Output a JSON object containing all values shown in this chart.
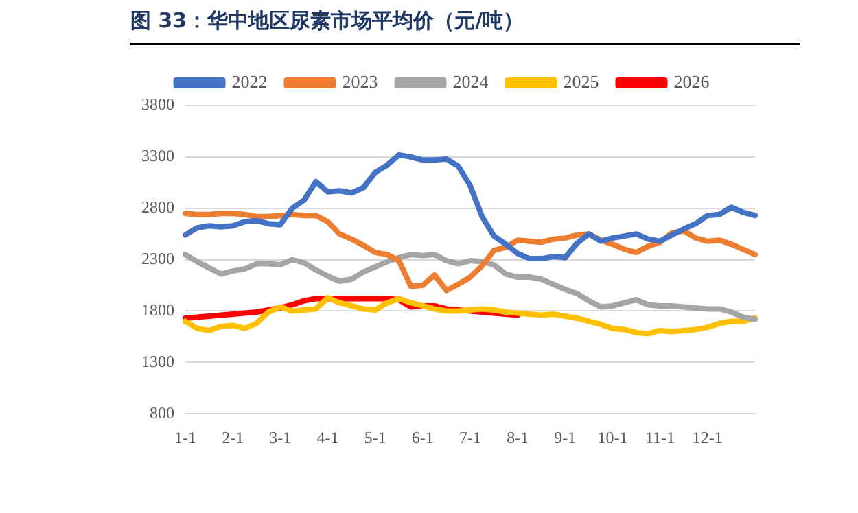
{
  "chart_data": {
    "type": "line",
    "title": "图 33：华中地区尿素市场平均价（元/吨）",
    "categories": [
      "1-1",
      null,
      null,
      null,
      "2-1",
      null,
      null,
      null,
      "3-1",
      null,
      null,
      null,
      "4-1",
      null,
      null,
      null,
      "5-1",
      null,
      null,
      null,
      "6-1",
      null,
      null,
      null,
      "7-1",
      null,
      null,
      null,
      "8-1",
      null,
      null,
      null,
      "9-1",
      null,
      null,
      null,
      "10-1",
      null,
      null,
      null,
      "11-1",
      null,
      null,
      null,
      "12-1",
      null,
      null,
      null,
      null
    ],
    "series": [
      {
        "name": "2022",
        "color": "#4472c4",
        "values": [
          2540,
          2610,
          2630,
          2620,
          2630,
          2670,
          2680,
          2650,
          2640,
          2800,
          2880,
          3060,
          2960,
          2970,
          2950,
          3000,
          3150,
          3220,
          3320,
          3300,
          3270,
          3270,
          3280,
          3210,
          3020,
          2720,
          2530,
          2450,
          2360,
          2310,
          2310,
          2330,
          2320,
          2460,
          2550,
          2480,
          2510,
          2530,
          2550,
          2500,
          2480,
          2540,
          2600,
          2650,
          2730,
          2740,
          2810,
          2760,
          2730
        ]
      },
      {
        "name": "2023",
        "color": "#ed7d31",
        "values": [
          2750,
          2740,
          2740,
          2750,
          2750,
          2740,
          2720,
          2720,
          2730,
          2740,
          2730,
          2730,
          2670,
          2550,
          2500,
          2440,
          2370,
          2350,
          2290,
          2040,
          2050,
          2150,
          2000,
          2060,
          2130,
          2240,
          2390,
          2420,
          2490,
          2480,
          2470,
          2500,
          2510,
          2540,
          2550,
          2490,
          2450,
          2400,
          2370,
          2430,
          2470,
          2560,
          2580,
          2510,
          2480,
          2490,
          2450,
          2400,
          2350
        ]
      },
      {
        "name": "2024",
        "color": "#a5a5a5",
        "values": [
          2350,
          2280,
          2220,
          2160,
          2190,
          2210,
          2260,
          2260,
          2250,
          2300,
          2270,
          2200,
          2140,
          2090,
          2110,
          2180,
          2230,
          2280,
          2320,
          2350,
          2340,
          2350,
          2290,
          2260,
          2290,
          2280,
          2250,
          2160,
          2130,
          2130,
          2110,
          2060,
          2010,
          1970,
          1900,
          1840,
          1850,
          1880,
          1910,
          1860,
          1850,
          1850,
          1840,
          1830,
          1820,
          1820,
          1790,
          1740,
          1720
        ]
      },
      {
        "name": "2025",
        "color": "#ffc000",
        "values": [
          1700,
          1630,
          1610,
          1650,
          1660,
          1630,
          1680,
          1790,
          1840,
          1800,
          1810,
          1820,
          1930,
          1880,
          1850,
          1820,
          1810,
          1880,
          1920,
          1880,
          1850,
          1820,
          1800,
          1800,
          1810,
          1820,
          1810,
          1790,
          1780,
          1770,
          1760,
          1770,
          1750,
          1730,
          1700,
          1670,
          1630,
          1620,
          1590,
          1580,
          1610,
          1600,
          1610,
          1620,
          1640,
          1680,
          1700,
          1700,
          1730
        ]
      },
      {
        "name": "2026",
        "color": "#ff0000",
        "values": [
          1730,
          1740,
          1750,
          1760,
          1770,
          1780,
          1790,
          1810,
          1830,
          1860,
          1900,
          1920,
          1920,
          1920,
          1920,
          1920,
          1920,
          1920,
          1910,
          1840,
          1850,
          1850,
          1820,
          1810,
          1800,
          1790,
          1780,
          1770,
          1760,
          null,
          null,
          null,
          null,
          null,
          null,
          null,
          null,
          null,
          null,
          null,
          null,
          null,
          null,
          null,
          null,
          null,
          null,
          null,
          null
        ]
      }
    ],
    "ylim": [
      800,
      3800
    ],
    "yticks": [
      800,
      1300,
      1800,
      2300,
      2800,
      3300,
      3800
    ],
    "grid": "y",
    "legend": "top",
    "marker": "none",
    "line_style": "solid"
  }
}
